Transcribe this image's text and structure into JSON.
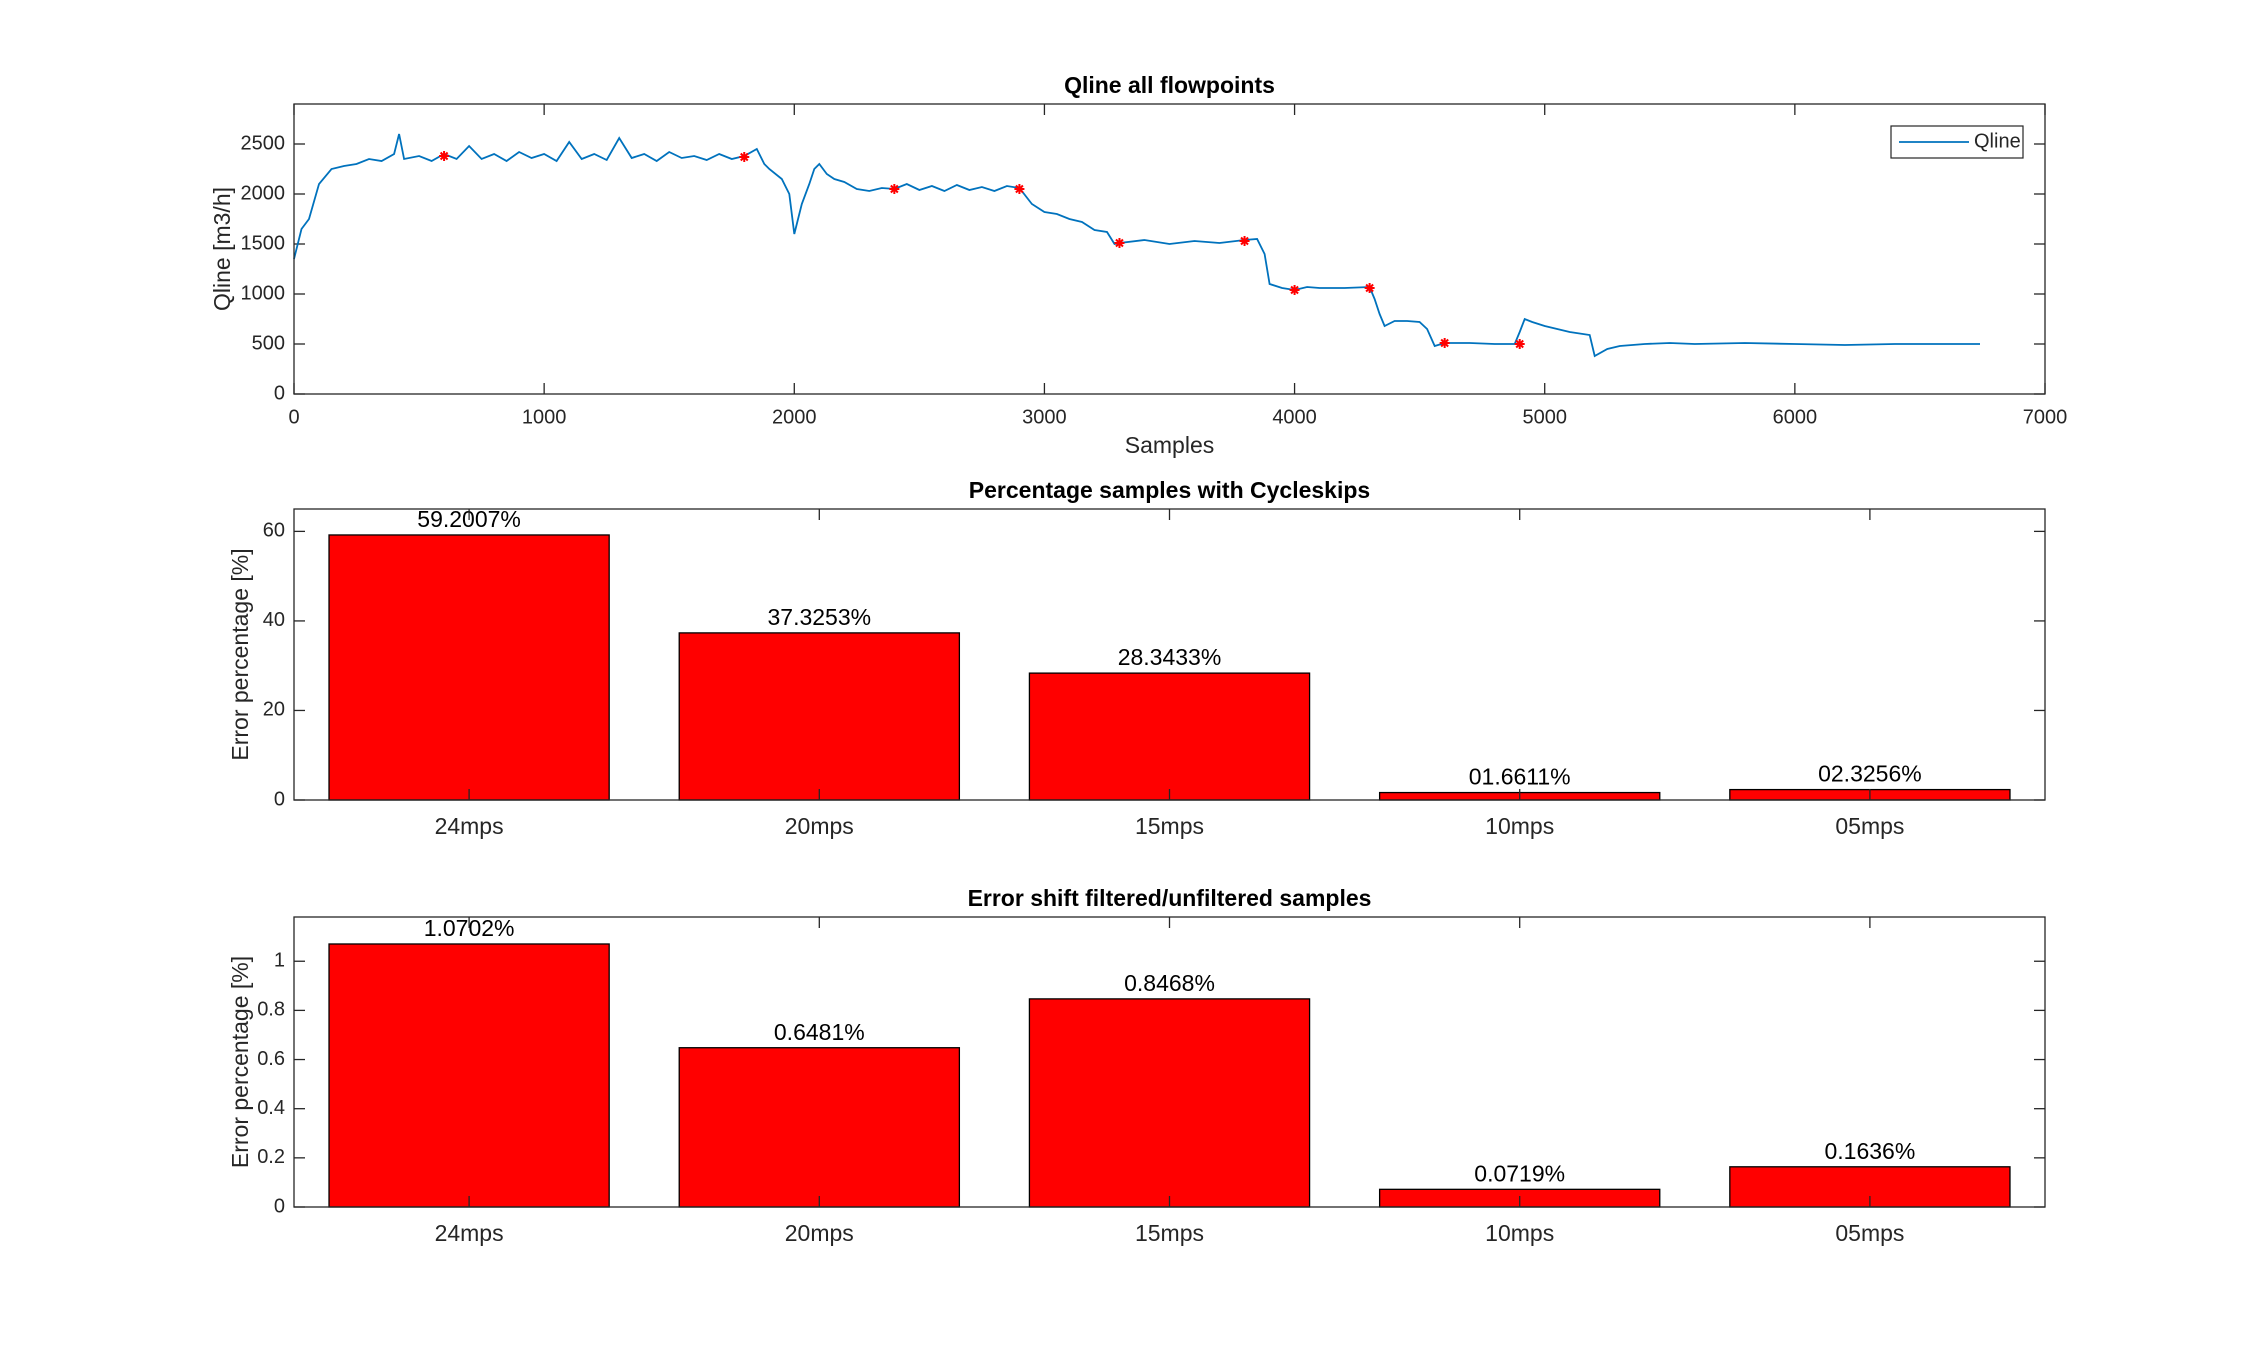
{
  "chart_data": [
    {
      "type": "line",
      "title": "Qline all flowpoints",
      "xlabel": "Samples",
      "ylabel": "Qline [m3/h]",
      "xlim": [
        0,
        7000
      ],
      "xticks": [
        0,
        1000,
        2000,
        3000,
        4000,
        5000,
        6000,
        7000
      ],
      "ylim": [
        0,
        2900
      ],
      "yticks": [
        0,
        500,
        1000,
        1500,
        2000,
        2500
      ],
      "legend": "northeast",
      "x": [
        0,
        30,
        60,
        100,
        150,
        200,
        250,
        300,
        350,
        400,
        420,
        440,
        500,
        550,
        600,
        650,
        700,
        750,
        800,
        850,
        900,
        950,
        1000,
        1050,
        1100,
        1150,
        1200,
        1250,
        1300,
        1350,
        1400,
        1450,
        1500,
        1550,
        1600,
        1650,
        1700,
        1750,
        1800,
        1850,
        1880,
        1900,
        1950,
        1980,
        2000,
        2030,
        2060,
        2080,
        2100,
        2130,
        2160,
        2200,
        2250,
        2300,
        2350,
        2400,
        2450,
        2500,
        2550,
        2600,
        2650,
        2700,
        2750,
        2800,
        2850,
        2900,
        2950,
        3000,
        3050,
        3100,
        3150,
        3200,
        3250,
        3280,
        3300,
        3400,
        3500,
        3600,
        3700,
        3800,
        3850,
        3880,
        3900,
        3950,
        4000,
        4050,
        4100,
        4200,
        4300,
        4320,
        4340,
        4360,
        4400,
        4450,
        4500,
        4530,
        4560,
        4600,
        4700,
        4800,
        4880,
        4900,
        4920,
        4950,
        5000,
        5100,
        5180,
        5200,
        5250,
        5300,
        5400,
        5500,
        5600,
        5800,
        6000,
        6200,
        6400,
        6600,
        6740
      ],
      "series": [
        {
          "name": "Qline",
          "color": "#0072bd",
          "values": [
            1350,
            1650,
            1750,
            2100,
            2250,
            2280,
            2300,
            2350,
            2330,
            2400,
            2600,
            2350,
            2380,
            2330,
            2400,
            2350,
            2480,
            2350,
            2400,
            2330,
            2420,
            2360,
            2400,
            2330,
            2520,
            2350,
            2400,
            2340,
            2560,
            2360,
            2400,
            2330,
            2420,
            2360,
            2380,
            2340,
            2400,
            2350,
            2380,
            2450,
            2300,
            2250,
            2150,
            2000,
            1600,
            1900,
            2100,
            2250,
            2300,
            2200,
            2150,
            2120,
            2050,
            2030,
            2060,
            2050,
            2100,
            2040,
            2080,
            2030,
            2090,
            2040,
            2070,
            2030,
            2080,
            2060,
            1900,
            1820,
            1800,
            1750,
            1720,
            1640,
            1620,
            1500,
            1510,
            1540,
            1500,
            1530,
            1510,
            1540,
            1550,
            1400,
            1100,
            1060,
            1040,
            1070,
            1060,
            1060,
            1070,
            950,
            800,
            680,
            730,
            730,
            720,
            650,
            480,
            510,
            510,
            500,
            500,
            620,
            750,
            720,
            680,
            620,
            590,
            380,
            450,
            480,
            500,
            510,
            500,
            510,
            500,
            490,
            500,
            500,
            500
          ]
        }
      ],
      "markers": {
        "color": "#ff0000",
        "x": [
          600,
          1800,
          2400,
          2900,
          3300,
          3800,
          4000,
          4300,
          4600,
          4900
        ],
        "values": [
          2380,
          2370,
          2050,
          2050,
          1510,
          1530,
          1040,
          1060,
          510,
          500
        ]
      }
    },
    {
      "type": "bar",
      "title": "Percentage samples with Cycleskips",
      "ylabel": "Error percentage [%]",
      "categories": [
        "24mps",
        "20mps",
        "15mps",
        "10mps",
        "05mps"
      ],
      "values": [
        59.2007,
        37.3253,
        28.3433,
        1.6611,
        2.3256
      ],
      "value_labels": [
        "59.2007%",
        "37.3253%",
        "28.3433%",
        "01.6611%",
        "02.3256%"
      ],
      "color": "#ff0000",
      "ylim": [
        0,
        65
      ],
      "yticks": [
        0,
        20,
        40,
        60
      ]
    },
    {
      "type": "bar",
      "title": "Error shift filtered/unfiltered samples",
      "ylabel": "Error percentage [%]",
      "categories": [
        "24mps",
        "20mps",
        "15mps",
        "10mps",
        "05mps"
      ],
      "values": [
        1.0702,
        0.6481,
        0.8468,
        0.0719,
        0.1636
      ],
      "value_labels": [
        "1.0702%",
        "0.6481%",
        "0.8468%",
        "0.0719%",
        "0.1636%"
      ],
      "color": "#ff0000",
      "ylim": [
        0,
        1.18
      ],
      "yticks": [
        0,
        0.2,
        0.4,
        0.6,
        0.8,
        1
      ]
    }
  ]
}
